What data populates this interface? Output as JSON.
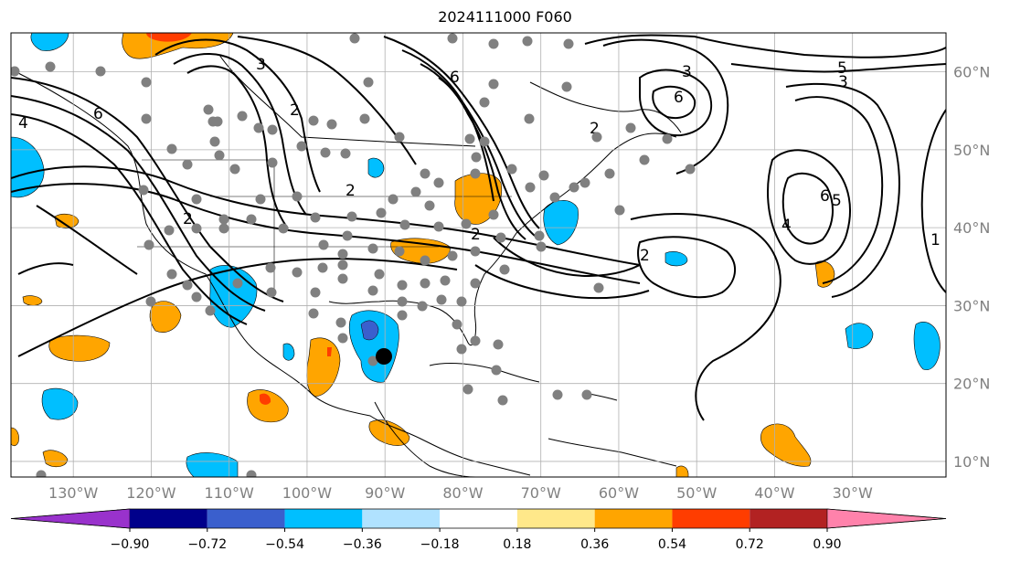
{
  "title": "2024111000 F060",
  "map": {
    "projection": "plate-carree",
    "lon_range": [
      -138,
      -18
    ],
    "lat_range": [
      8,
      65
    ],
    "lat_ticks": [
      "10°N",
      "20°N",
      "30°N",
      "40°N",
      "50°N",
      "60°N"
    ],
    "lon_ticks": [
      "130°W",
      "120°W",
      "110°W",
      "100°W",
      "90°W",
      "80°W",
      "70°W",
      "60°W",
      "50°W",
      "40°W",
      "30°W"
    ],
    "gridlines": true,
    "contour_color": "#000000",
    "contour_labels": [
      "3",
      "2",
      "4",
      "6",
      "6",
      "3",
      "6",
      "5",
      "3",
      "2",
      "2",
      "4",
      "6",
      "5",
      "1",
      "2",
      "2",
      "2"
    ],
    "marker_color": "#000000",
    "station_color": "#808080"
  },
  "colorbar": {
    "tick_labels": [
      "−0.90",
      "−0.72",
      "−0.54",
      "−0.36",
      "−0.18",
      "0.18",
      "0.36",
      "0.54",
      "0.72",
      "0.90"
    ],
    "colors": [
      "#9932CC",
      "#00008B",
      "#3A5FCD",
      "#00BFFF",
      "#B0E2FF",
      "#FFFFFF",
      "#FFE88A",
      "#FFA500",
      "#FF3D00",
      "#B22222",
      "#FF82AB"
    ]
  }
}
